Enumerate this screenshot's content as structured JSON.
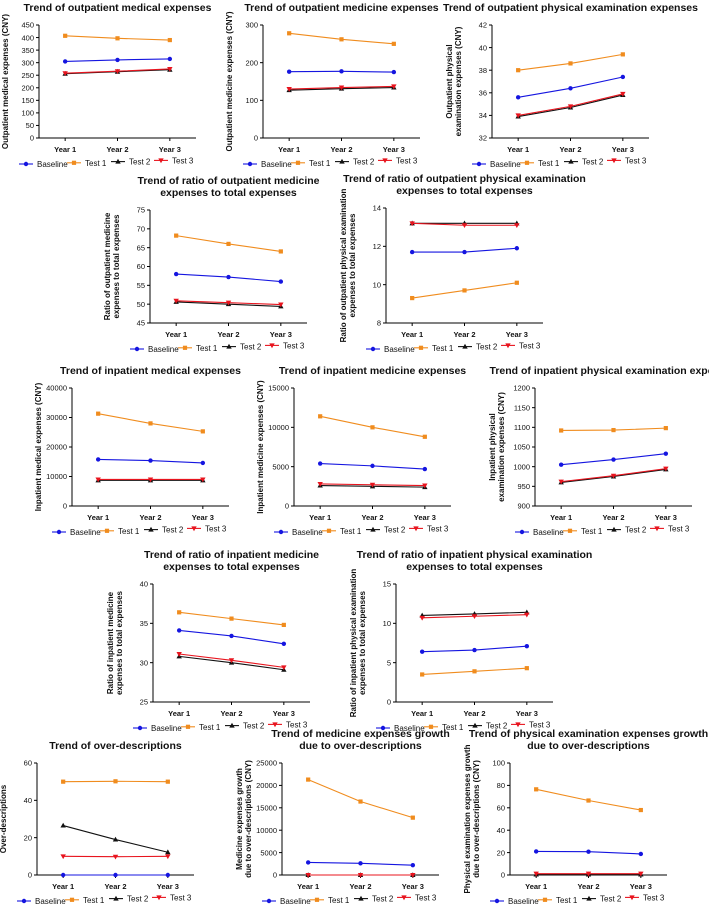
{
  "colors": {
    "Baseline": "#1515e0",
    "Test 1": "#f08c1e",
    "Test 2": "#111111",
    "Test 3": "#e8141e"
  },
  "chart_data": [
    {
      "type": "line",
      "title": [
        "Trend of outpatient medical expenses"
      ],
      "ylabel": [
        "Outpatient medical expenses (CNY)"
      ],
      "categories": [
        "Year 1",
        "Year 2",
        "Year 3"
      ],
      "ylim": [
        0,
        450
      ],
      "yticks": [
        0,
        50,
        100,
        150,
        200,
        250,
        300,
        350,
        400,
        450
      ],
      "series": [
        {
          "name": "Baseline",
          "values": [
            305,
            311,
            315
          ]
        },
        {
          "name": "Test 1",
          "values": [
            407,
            397,
            390
          ]
        },
        {
          "name": "Test 2",
          "values": [
            256,
            264,
            272
          ]
        },
        {
          "name": "Test 3",
          "values": [
            258,
            266,
            275
          ]
        }
      ]
    },
    {
      "type": "line",
      "title": [
        "Trend of outpatient medicine expenses"
      ],
      "ylabel": [
        "Outpatient medicine expenses (CNY)"
      ],
      "categories": [
        "Year 1",
        "Year 2",
        "Year 3"
      ],
      "ylim": [
        0,
        300
      ],
      "yticks": [
        0,
        100,
        200,
        300
      ],
      "series": [
        {
          "name": "Baseline",
          "values": [
            176,
            177,
            175
          ]
        },
        {
          "name": "Test 1",
          "values": [
            278,
            262,
            250
          ]
        },
        {
          "name": "Test 2",
          "values": [
            127,
            131,
            134
          ]
        },
        {
          "name": "Test 3",
          "values": [
            130,
            134,
            137
          ]
        }
      ]
    },
    {
      "type": "line",
      "title": [
        "Trend of outpatient physical examination expenses"
      ],
      "ylabel": [
        "Outpatient physical",
        "examination expenses (CNY)"
      ],
      "categories": [
        "Year 1",
        "Year 2",
        "Year 3"
      ],
      "ylim": [
        32,
        42
      ],
      "yticks": [
        32,
        34,
        36,
        38,
        40,
        42
      ],
      "series": [
        {
          "name": "Baseline",
          "values": [
            35.6,
            36.4,
            37.4
          ]
        },
        {
          "name": "Test 1",
          "values": [
            38.0,
            38.6,
            39.4
          ]
        },
        {
          "name": "Test 2",
          "values": [
            33.9,
            34.7,
            35.8
          ]
        },
        {
          "name": "Test 3",
          "values": [
            34.0,
            34.8,
            35.9
          ]
        }
      ]
    },
    {
      "type": "line",
      "title": [
        "Trend of ratio of outpatient medicine",
        "expenses to total expenses"
      ],
      "ylabel": [
        "Ratio of outpatient medicine",
        "expenses to total expenses"
      ],
      "categories": [
        "Year 1",
        "Year 2",
        "Year 3"
      ],
      "ylim": [
        45,
        75
      ],
      "yticks": [
        45,
        50,
        55,
        60,
        65,
        70,
        75
      ],
      "series": [
        {
          "name": "Baseline",
          "values": [
            58.0,
            57.2,
            56.0
          ]
        },
        {
          "name": "Test 1",
          "values": [
            68.2,
            66.0,
            64.0
          ]
        },
        {
          "name": "Test 2",
          "values": [
            50.6,
            50.0,
            49.4
          ]
        },
        {
          "name": "Test 3",
          "values": [
            50.9,
            50.4,
            49.9
          ]
        }
      ]
    },
    {
      "type": "line",
      "title": [
        "Trend of ratio of outpatient physical examination",
        "expenses to total expenses"
      ],
      "ylabel": [
        "Ratio of outpatient physical examination",
        "expenses to total expenses"
      ],
      "categories": [
        "Year 1",
        "Year 2",
        "Year 3"
      ],
      "ylim": [
        8,
        14
      ],
      "yticks": [
        8,
        10,
        12,
        14
      ],
      "series": [
        {
          "name": "Baseline",
          "values": [
            11.7,
            11.7,
            11.9
          ]
        },
        {
          "name": "Test 1",
          "values": [
            9.3,
            9.7,
            10.1
          ]
        },
        {
          "name": "Test 2",
          "values": [
            13.2,
            13.2,
            13.2
          ]
        },
        {
          "name": "Test 3",
          "values": [
            13.2,
            13.1,
            13.1
          ]
        }
      ]
    },
    {
      "type": "line",
      "title": [
        "Trend of inpatient medical expenses"
      ],
      "ylabel": [
        "Inpatient medical expenses (CNY)"
      ],
      "categories": [
        "Year 1",
        "Year 2",
        "Year 3"
      ],
      "ylim": [
        0,
        40000
      ],
      "yticks": [
        0,
        10000,
        20000,
        30000,
        40000
      ],
      "series": [
        {
          "name": "Baseline",
          "values": [
            15800,
            15400,
            14600
          ]
        },
        {
          "name": "Test 1",
          "values": [
            31300,
            28000,
            25300
          ]
        },
        {
          "name": "Test 2",
          "values": [
            8700,
            8700,
            8700
          ]
        },
        {
          "name": "Test 3",
          "values": [
            9000,
            9000,
            9000
          ]
        }
      ]
    },
    {
      "type": "line",
      "title": [
        "Trend of inpatient medicine expenses"
      ],
      "ylabel": [
        "Inpatient medicine expenses (CNY)"
      ],
      "categories": [
        "Year 1",
        "Year 2",
        "Year 3"
      ],
      "ylim": [
        0,
        15000
      ],
      "yticks": [
        0,
        5000,
        10000,
        15000
      ],
      "series": [
        {
          "name": "Baseline",
          "values": [
            5400,
            5100,
            4700
          ]
        },
        {
          "name": "Test 1",
          "values": [
            11400,
            10000,
            8800
          ]
        },
        {
          "name": "Test 2",
          "values": [
            2600,
            2500,
            2400
          ]
        },
        {
          "name": "Test 3",
          "values": [
            2800,
            2700,
            2600
          ]
        }
      ]
    },
    {
      "type": "line",
      "title": [
        "Trend of inpatient physical examination expenses"
      ],
      "ylabel": [
        "Inpatient physical",
        "examination expenses (CNY)"
      ],
      "categories": [
        "Year 1",
        "Year 2",
        "Year 3"
      ],
      "ylim": [
        900,
        1200
      ],
      "yticks": [
        900,
        950,
        1000,
        1050,
        1100,
        1150,
        1200
      ],
      "series": [
        {
          "name": "Baseline",
          "values": [
            1005,
            1018,
            1033
          ]
        },
        {
          "name": "Test 1",
          "values": [
            1092,
            1093,
            1098
          ]
        },
        {
          "name": "Test 2",
          "values": [
            960,
            975,
            993
          ]
        },
        {
          "name": "Test 3",
          "values": [
            962,
            977,
            995
          ]
        }
      ]
    },
    {
      "type": "line",
      "title": [
        "Trend of ratio of inpatient medicine",
        "expenses to total expenses"
      ],
      "ylabel": [
        "Ratio of inpatient medicine",
        "expenses to total expenses"
      ],
      "categories": [
        "Year 1",
        "Year 2",
        "Year 3"
      ],
      "ylim": [
        25,
        40
      ],
      "yticks": [
        25,
        30,
        35,
        40
      ],
      "series": [
        {
          "name": "Baseline",
          "values": [
            34.1,
            33.4,
            32.4
          ]
        },
        {
          "name": "Test 1",
          "values": [
            36.4,
            35.6,
            34.8
          ]
        },
        {
          "name": "Test 2",
          "values": [
            30.8,
            30.0,
            29.1
          ]
        },
        {
          "name": "Test 3",
          "values": [
            31.1,
            30.3,
            29.4
          ]
        }
      ]
    },
    {
      "type": "line",
      "title": [
        "Trend of ratio of inpatient physical examination",
        "expenses to total expenses"
      ],
      "ylabel": [
        "Ratio of inpatient physical examination",
        "expenses to total expenses"
      ],
      "categories": [
        "Year 1",
        "Year 2",
        "Year 3"
      ],
      "ylim": [
        0,
        15
      ],
      "yticks": [
        0,
        5,
        10,
        15
      ],
      "series": [
        {
          "name": "Baseline",
          "values": [
            6.4,
            6.6,
            7.1
          ]
        },
        {
          "name": "Test 1",
          "values": [
            3.5,
            3.9,
            4.3
          ]
        },
        {
          "name": "Test 2",
          "values": [
            11.0,
            11.2,
            11.4
          ]
        },
        {
          "name": "Test 3",
          "values": [
            10.7,
            10.9,
            11.1
          ]
        }
      ]
    },
    {
      "type": "line",
      "title": [
        "Trend of over-descriptions"
      ],
      "ylabel": [
        "Over-descriptions"
      ],
      "categories": [
        "Year 1",
        "Year 2",
        "Year 3"
      ],
      "ylim": [
        0,
        60
      ],
      "yticks": [
        0,
        20,
        40,
        60
      ],
      "series": [
        {
          "name": "Baseline",
          "values": [
            0,
            0,
            0
          ]
        },
        {
          "name": "Test 1",
          "values": [
            50,
            50.2,
            50
          ]
        },
        {
          "name": "Test 2",
          "values": [
            26.5,
            19,
            12.2
          ]
        },
        {
          "name": "Test 3",
          "values": [
            10,
            9.8,
            10
          ]
        }
      ]
    },
    {
      "type": "line",
      "title": [
        "Trend of medicine expenses growth",
        "due to over-descriptions"
      ],
      "ylabel": [
        "Medicine expenses growth",
        "due to over-descriptions (CNY)"
      ],
      "categories": [
        "Year 1",
        "Year 2",
        "Year 3"
      ],
      "ylim": [
        0,
        25000
      ],
      "yticks": [
        0,
        5000,
        10000,
        15000,
        20000,
        25000
      ],
      "series": [
        {
          "name": "Baseline",
          "values": [
            2800,
            2600,
            2200
          ]
        },
        {
          "name": "Test 1",
          "values": [
            21300,
            16400,
            12800
          ]
        },
        {
          "name": "Test 2",
          "values": [
            0,
            0,
            0
          ]
        },
        {
          "name": "Test 3",
          "values": [
            0,
            0,
            0
          ]
        }
      ]
    },
    {
      "type": "line",
      "title": [
        "Trend of physical examination expenses growth",
        "due to over-descriptions"
      ],
      "ylabel": [
        "Physical examination expenses growth",
        "due to over-descriptions (CNY)"
      ],
      "categories": [
        "Year 1",
        "Year 2",
        "Year 3"
      ],
      "ylim": [
        0,
        100
      ],
      "yticks": [
        0,
        20,
        40,
        60,
        80,
        100
      ],
      "series": [
        {
          "name": "Baseline",
          "values": [
            21,
            20.8,
            18.8
          ]
        },
        {
          "name": "Test 1",
          "values": [
            76.5,
            66.5,
            58
          ]
        },
        {
          "name": "Test 2",
          "values": [
            0.5,
            0.5,
            0.5
          ]
        },
        {
          "name": "Test 3",
          "values": [
            1.2,
            1.2,
            1.2
          ]
        }
      ]
    }
  ]
}
